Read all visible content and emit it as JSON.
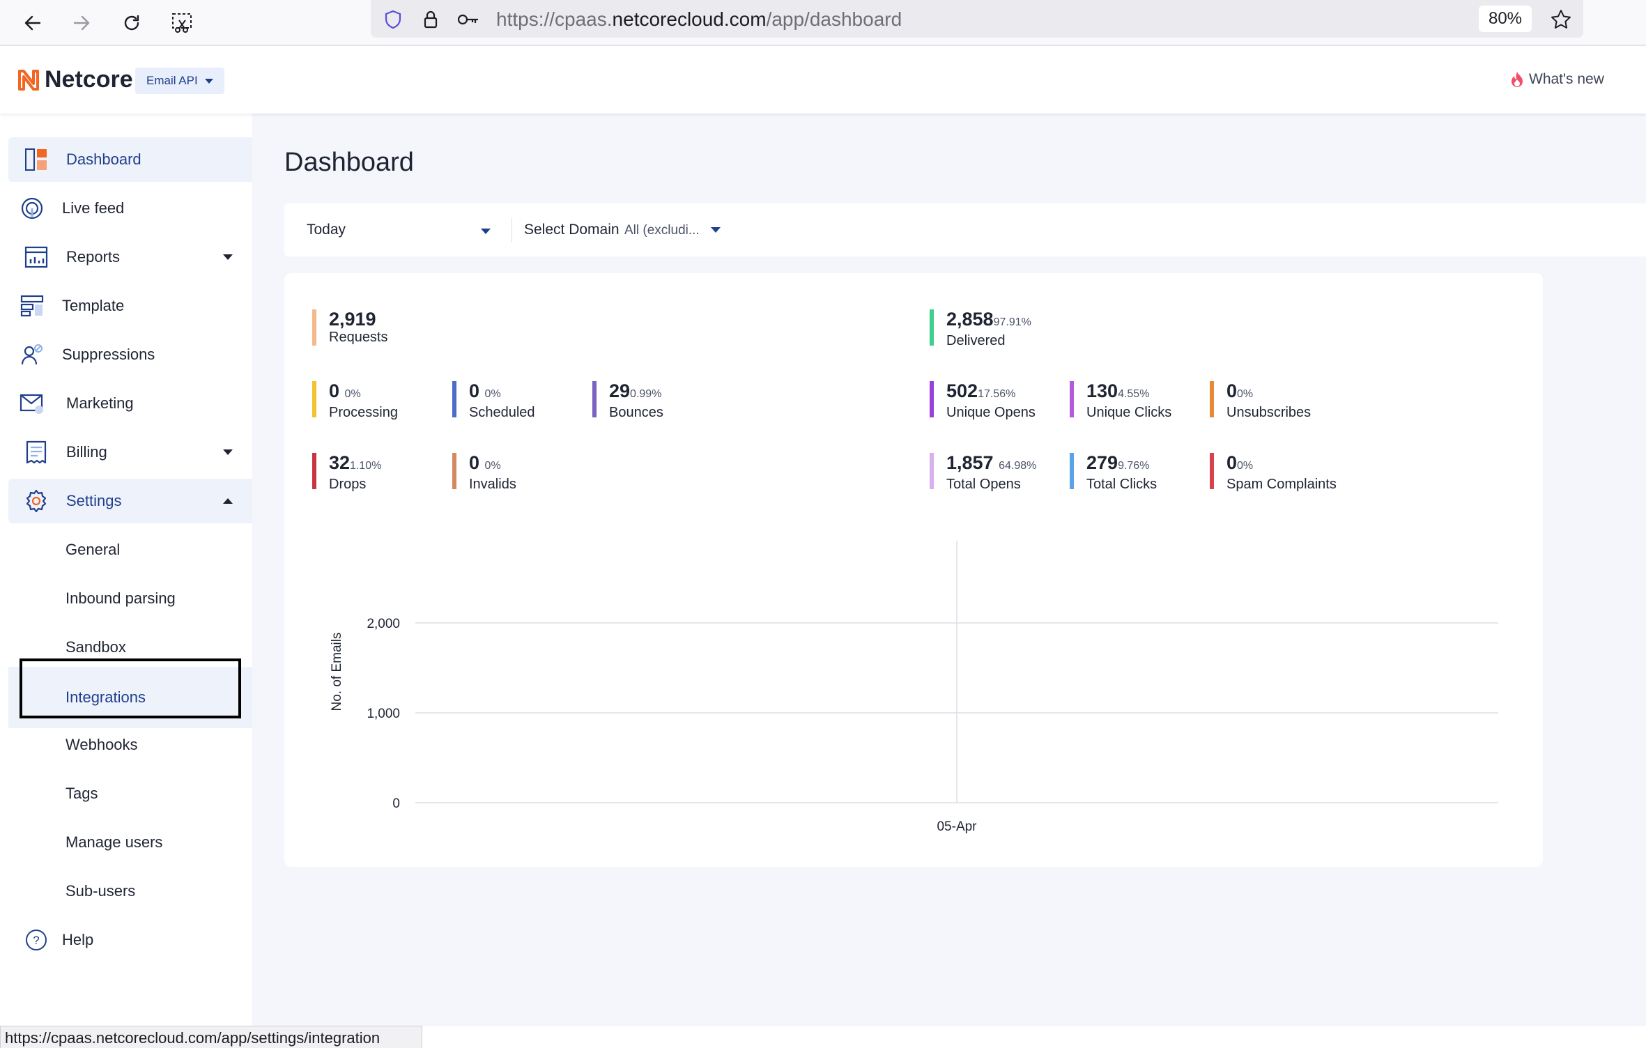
{
  "browser": {
    "url_prefix": "https://cpaas.",
    "url_host": "netcorecloud.com",
    "url_path": "/app/dashboard",
    "zoom": "80%",
    "status_url": "https://cpaas.netcorecloud.com/app/settings/integration"
  },
  "header": {
    "logo_text": "Netcore",
    "product": "Email API",
    "whats_new": "What's new",
    "accent": "#f26522"
  },
  "sidebar": {
    "items": [
      {
        "label": "Dashboard",
        "icon": "dashboard-icon"
      },
      {
        "label": "Live feed",
        "icon": "live-feed-icon"
      },
      {
        "label": "Reports",
        "icon": "reports-icon"
      },
      {
        "label": "Template",
        "icon": "template-icon"
      },
      {
        "label": "Suppressions",
        "icon": "suppressions-icon"
      },
      {
        "label": "Marketing",
        "icon": "marketing-icon"
      },
      {
        "label": "Billing",
        "icon": "billing-icon"
      },
      {
        "label": "Settings",
        "icon": "gear-icon"
      }
    ],
    "settings_sub": [
      "General",
      "Inbound parsing",
      "Sandbox",
      "Integrations",
      "Webhooks",
      "Tags",
      "Manage users",
      "Sub-users"
    ],
    "help": "Help"
  },
  "main": {
    "title": "Dashboard",
    "filters": {
      "period": "Today",
      "domain_label": "Select Domain",
      "domain_value": "All (excludi..."
    },
    "stats": {
      "requests": {
        "num": "2,919",
        "pct": "",
        "label": "Requests",
        "color": "#f5b98a"
      },
      "delivered": {
        "num": "2,858",
        "pct": "97.91%",
        "label": "Delivered",
        "color": "#3ecf8e"
      },
      "processing": {
        "num": "0",
        "pct": "0%",
        "label": "Processing",
        "color": "#f2c230"
      },
      "scheduled": {
        "num": "0",
        "pct": "0%",
        "label": "Scheduled",
        "color": "#4b6cc7"
      },
      "bounces": {
        "num": "29",
        "pct": "0.99%",
        "label": "Bounces",
        "color": "#7b63c0"
      },
      "unique_opens": {
        "num": "502",
        "pct": "17.56%",
        "label": "Unique Opens",
        "color": "#9c3fd8"
      },
      "unique_clicks": {
        "num": "130",
        "pct": "4.55%",
        "label": "Unique Clicks",
        "color": "#b45bdc"
      },
      "unsubscribes": {
        "num": "0",
        "pct": "0%",
        "label": "Unsubscribes",
        "color": "#e8893a"
      },
      "drops": {
        "num": "32",
        "pct": "1.10%",
        "label": "Drops",
        "color": "#c8343f"
      },
      "invalids": {
        "num": "0",
        "pct": "0%",
        "label": "Invalids",
        "color": "#d28a5e"
      },
      "total_opens": {
        "num": "1,857",
        "pct": "64.98%",
        "label": "Total Opens",
        "color": "#d8b0ee"
      },
      "total_clicks": {
        "num": "279",
        "pct": "9.76%",
        "label": "Total Clicks",
        "color": "#5ba3e8"
      },
      "spam_complaints": {
        "num": "0",
        "pct": "0%",
        "label": "Spam Complaints",
        "color": "#d9414d"
      }
    }
  },
  "chart_data": {
    "type": "line",
    "categories": [
      "05-Apr"
    ],
    "series": [],
    "ylabel": "No. of Emails",
    "yticks": [
      "0",
      "1,000",
      "2,000"
    ],
    "ylim": [
      0,
      2000
    ],
    "grid": true
  }
}
